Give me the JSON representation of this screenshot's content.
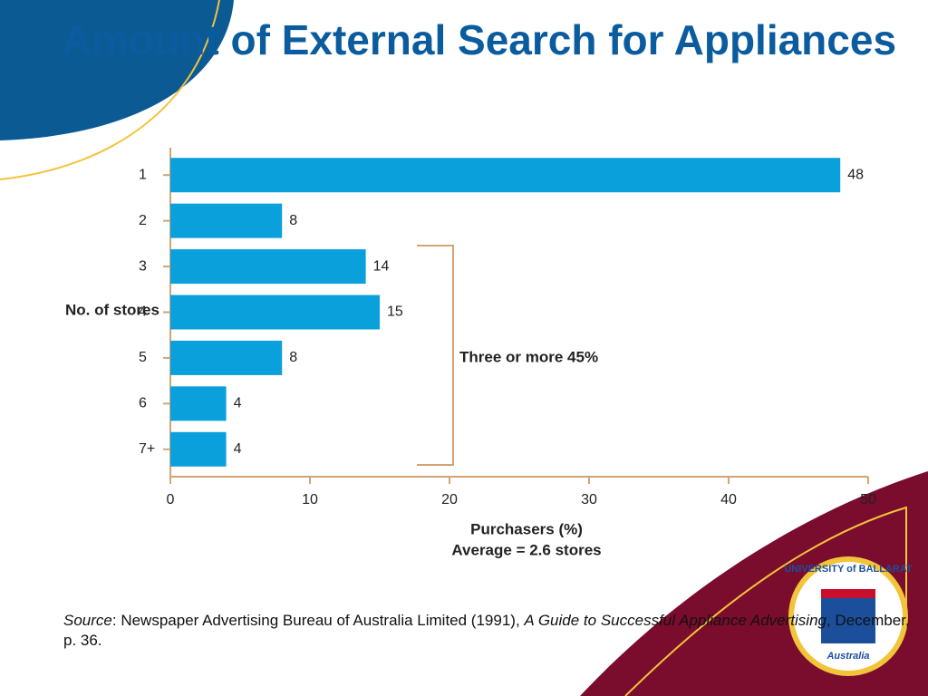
{
  "title": "Amount of External Search for Appliances",
  "chart_data": {
    "type": "bar",
    "orientation": "horizontal",
    "y_label": "No. of stores",
    "x_label": "Purchasers (%)",
    "subtitle": "Average = 2.6 stores",
    "annotation": "Three or more 45%",
    "categories": [
      "1",
      "2",
      "3",
      "4",
      "5",
      "6",
      "7+"
    ],
    "values": [
      48,
      8,
      14,
      15,
      8,
      4,
      4
    ],
    "color": "#0aa0dc",
    "xlim": [
      0,
      50
    ],
    "xticks": [
      0,
      10,
      20,
      30,
      40,
      50
    ],
    "grid": false
  },
  "source": {
    "label": "Source",
    "text": ": Newspaper Advertising Bureau of Australia Limited (1991), ",
    "publication": "A Guide to Successful Appliance Advertising",
    "rest": ", December, p. 36."
  },
  "logo": {
    "top": "UNIVERSITY of BALLARAT",
    "bottom": "Australia"
  }
}
